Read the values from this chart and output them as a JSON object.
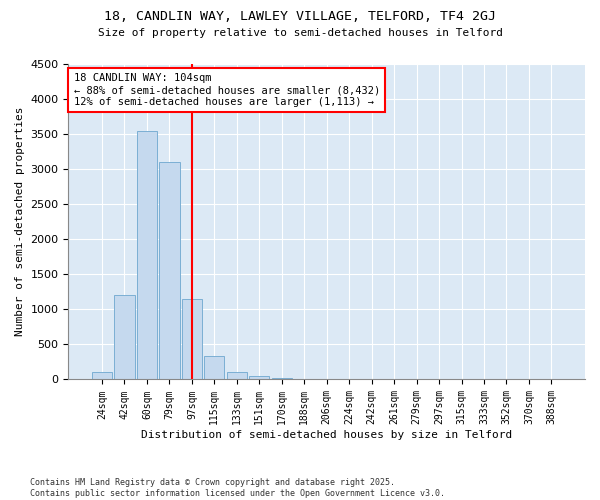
{
  "title1": "18, CANDLIN WAY, LAWLEY VILLAGE, TELFORD, TF4 2GJ",
  "title2": "Size of property relative to semi-detached houses in Telford",
  "xlabel": "Distribution of semi-detached houses by size in Telford",
  "ylabel": "Number of semi-detached properties",
  "categories": [
    "24sqm",
    "42sqm",
    "60sqm",
    "79sqm",
    "97sqm",
    "115sqm",
    "133sqm",
    "151sqm",
    "170sqm",
    "188sqm",
    "206sqm",
    "224sqm",
    "242sqm",
    "261sqm",
    "279sqm",
    "297sqm",
    "315sqm",
    "333sqm",
    "352sqm",
    "370sqm",
    "388sqm"
  ],
  "values": [
    100,
    1200,
    3550,
    3100,
    1150,
    330,
    100,
    55,
    15,
    2,
    0,
    0,
    0,
    0,
    0,
    0,
    0,
    0,
    0,
    0,
    0
  ],
  "bar_color": "#c5d9ee",
  "bar_edge_color": "#7bafd4",
  "red_line_x": 4.0,
  "annotation_title": "18 CANDLIN WAY: 104sqm",
  "annotation_line1": "← 88% of semi-detached houses are smaller (8,432)",
  "annotation_line2": "12% of semi-detached houses are larger (1,113) →",
  "footer1": "Contains HM Land Registry data © Crown copyright and database right 2025.",
  "footer2": "Contains public sector information licensed under the Open Government Licence v3.0.",
  "ylim": [
    0,
    4500
  ],
  "fig_bg": "#ffffff",
  "plot_bg": "#dce9f5"
}
